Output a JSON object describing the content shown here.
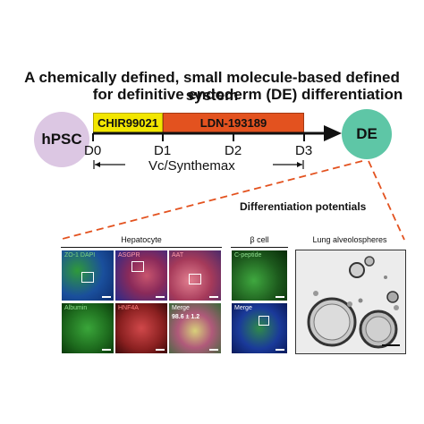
{
  "title": {
    "line1": "A chemically defined, small molecule-based defined system",
    "line2": "for definitive endoderm (DE) differentiation"
  },
  "timeline": {
    "start_label": "hPSC",
    "end_label": "DE",
    "chir_label": "CHIR99021",
    "ldn_label": "LDN-193189",
    "days": [
      "D0",
      "D1",
      "D2",
      "D3"
    ],
    "matrix_label": "Vc/Synthemax"
  },
  "potentials": {
    "title": "Differentiation potentials",
    "hepatocyte_header": "Hepatocyte",
    "beta_header": "β cell",
    "lung_header": "Lung alveolospheres",
    "hep_panels": [
      {
        "label": "ZO-1 DAPI"
      },
      {
        "label": "ASGPR"
      },
      {
        "label": "AAT"
      },
      {
        "label": "Albumin"
      },
      {
        "label": "HNF4A"
      },
      {
        "label": "Merge",
        "value": "98.6 ± 1.2"
      }
    ],
    "beta_panels": [
      {
        "label": "C-peptide"
      },
      {
        "label": "Merge"
      }
    ]
  },
  "colors": {
    "hpsc_circle": "#dcc7e3",
    "de_circle": "#5ec6a6",
    "chir_bar": "#f2e600",
    "ldn_bar": "#e3521f",
    "dashed_line": "#e3521f",
    "green_stain": "#2a8a2a",
    "blue_stain": "#1b3aa8",
    "red_stain": "#b83a3a"
  }
}
